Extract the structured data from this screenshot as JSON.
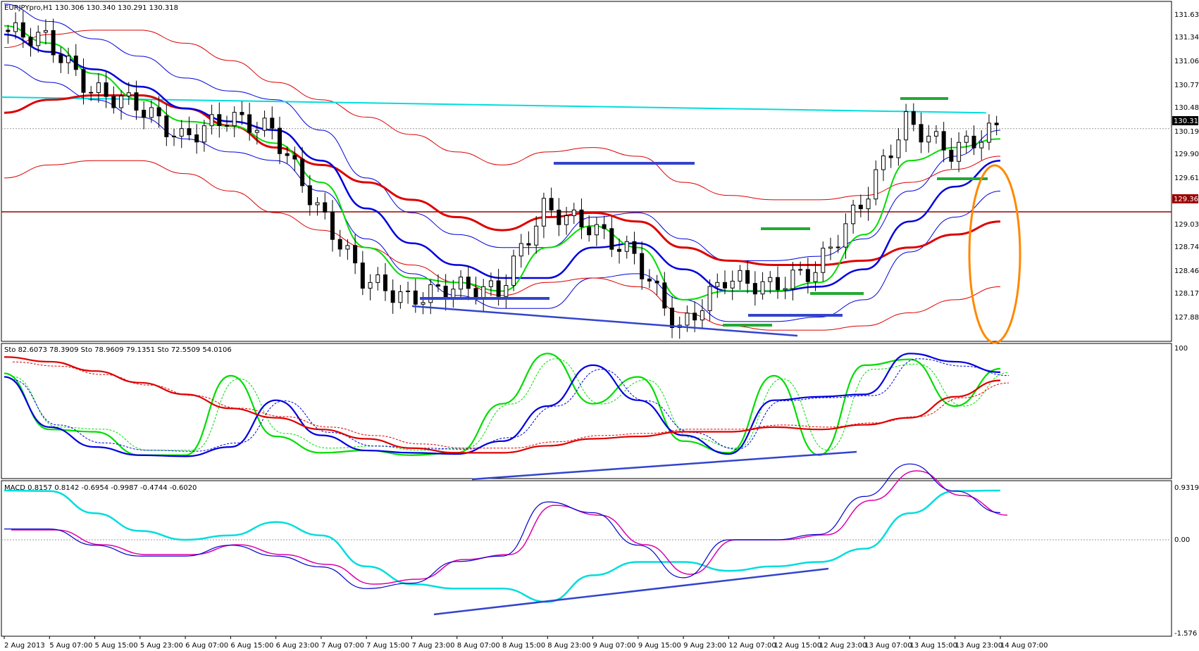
{
  "window": {
    "symbol_header": "EURJPYpro,H1  130.306 130.340 130.291 130.318"
  },
  "price_panel": {
    "price_labels": [
      "131.635",
      "131.345",
      "131.060",
      "130.770",
      "130.480",
      "130.190",
      "129.905",
      "129.615",
      "129.035",
      "128.745",
      "128.460",
      "128.170",
      "127.880"
    ],
    "current_price": "130.318",
    "level_price": "129.361",
    "colors": {
      "up_candle": "#ffffff",
      "down_candle": "#000000",
      "ma_fast": "#00dd00",
      "ma_mid": "#0000dd",
      "ma_slow": "#dd0000",
      "horizontal_level": "#990000",
      "cyan_line": "#00dddd",
      "annotation_blue": "#3344cc",
      "annotation_green": "#22aa33",
      "ellipse": "#ff8800",
      "badge_bg": "#000000",
      "level_badge_bg": "#990000"
    }
  },
  "stoch_panel": {
    "header": "Sto 82.6073 78.3909  Sto 78.9609 79.1351  Sto 72.5509 54.0106",
    "scale_top": "100"
  },
  "macd_panel": {
    "header": "MACD 0.8157 0.8142 -0.6954 -0.9987 -0.4744 -0.6020",
    "scale_labels": [
      "0.9319",
      "0.00",
      "-1.576"
    ]
  },
  "time_axis": {
    "labels": [
      "2 Aug 2013",
      "5 Aug 07:00",
      "5 Aug 15:00",
      "5 Aug 23:00",
      "6 Aug 07:00",
      "6 Aug 15:00",
      "6 Aug 23:00",
      "7 Aug 07:00",
      "7 Aug 15:00",
      "7 Aug 23:00",
      "8 Aug 07:00",
      "8 Aug 15:00",
      "8 Aug 23:00",
      "9 Aug 07:00",
      "9 Aug 15:00",
      "9 Aug 23:00",
      "12 Aug 07:00",
      "12 Aug 15:00",
      "12 Aug 23:00",
      "13 Aug 07:00",
      "13 Aug 15:00",
      "13 Aug 23:00",
      "14 Aug 07:00"
    ]
  },
  "chart_data": {
    "type": "line",
    "symbol": "EURJPYpro",
    "timeframe": "H1",
    "x": [
      "2 Aug 2013",
      "5 Aug 07:00",
      "5 Aug 15:00",
      "5 Aug 23:00",
      "6 Aug 07:00",
      "6 Aug 15:00",
      "6 Aug 23:00",
      "7 Aug 07:00",
      "7 Aug 15:00",
      "7 Aug 23:00",
      "8 Aug 07:00",
      "8 Aug 15:00",
      "8 Aug 23:00",
      "9 Aug 07:00",
      "9 Aug 15:00",
      "9 Aug 23:00",
      "12 Aug 07:00",
      "12 Aug 15:00",
      "12 Aug 23:00",
      "13 Aug 07:00",
      "13 Aug 15:00",
      "13 Aug 23:00",
      "14 Aug 07:00"
    ],
    "series": [
      {
        "values": [
          131.45,
          131.35,
          130.75,
          130.6,
          130.2,
          130.45,
          130.3,
          129.4,
          128.6,
          128.35,
          128.5,
          128.45,
          129.4,
          129.2,
          128.85,
          128.0,
          128.6,
          128.5,
          128.7,
          129.45,
          130.4,
          130.05,
          130.32
        ]
      },
      {
        "values": [
          131.5,
          131.3,
          130.95,
          130.65,
          130.4,
          130.35,
          130.15,
          129.7,
          128.95,
          128.6,
          128.55,
          128.45,
          128.95,
          129.2,
          128.95,
          128.35,
          128.45,
          128.45,
          128.55,
          129.1,
          129.95,
          130.1,
          130.2
        ]
      },
      {
        "values": [
          131.4,
          131.2,
          131.0,
          130.8,
          130.55,
          130.4,
          130.3,
          129.95,
          129.4,
          129.0,
          128.75,
          128.6,
          128.6,
          128.95,
          129.0,
          128.7,
          128.45,
          128.45,
          128.5,
          128.7,
          129.25,
          129.65,
          129.95
        ]
      },
      {
        "values": [
          130.5,
          130.65,
          130.7,
          130.7,
          130.55,
          130.35,
          130.1,
          129.9,
          129.7,
          129.5,
          129.3,
          129.15,
          129.3,
          129.35,
          129.25,
          128.95,
          128.8,
          128.75,
          128.75,
          128.8,
          128.95,
          129.1,
          129.25
        ]
      },
      {
        "name": "Sto",
        "values": [
          78,
          30,
          28,
          8,
          8,
          76,
          24,
          10,
          12,
          8,
          10,
          52,
          95,
          52,
          75,
          20,
          10,
          76,
          8,
          85,
          90,
          50,
          82
        ]
      },
      {
        "name": "Sto",
        "values": [
          75,
          32,
          15,
          8,
          7,
          15,
          55,
          25,
          12,
          10,
          9,
          20,
          50,
          85,
          55,
          25,
          9,
          55,
          58,
          60,
          95,
          88,
          79
        ]
      },
      {
        "name": "Sto",
        "values": [
          92,
          88,
          80,
          70,
          60,
          48,
          40,
          30,
          22,
          14,
          10,
          10,
          16,
          22,
          24,
          28,
          28,
          32,
          30,
          34,
          40,
          58,
          72
        ]
      }
    ],
    "ylim": [
      127.88,
      131.635
    ]
  }
}
